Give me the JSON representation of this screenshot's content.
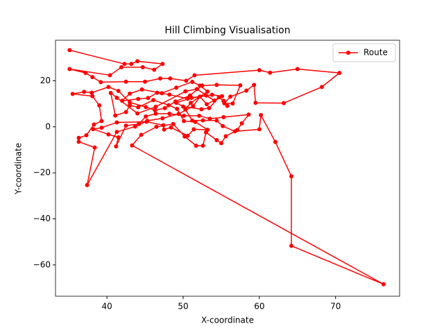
{
  "chart_data": {
    "type": "line",
    "title": "Hill Climbing Visualisation",
    "x_label": "X-coordinate",
    "y_label": "Y-coordinate",
    "xlim": [
      33.25,
      78.4
    ],
    "ylim": [
      -73.6,
      37.6
    ],
    "xticks": [
      40,
      50,
      60,
      70
    ],
    "yticks": [
      {
        "value": -60,
        "label": "−60"
      },
      {
        "value": -40,
        "label": "−40"
      },
      {
        "value": -20,
        "label": "−20"
      },
      0,
      20
    ],
    "legend": "upper right",
    "x": [
      35.1,
      42.3,
      43.2,
      44,
      47.3,
      46.2,
      44.7,
      41.9,
      40.4,
      35.1,
      37.2,
      38.1,
      39.2,
      42.5,
      45,
      47,
      48.3,
      50.4,
      51.5,
      60,
      61.4,
      65,
      70.5,
      68.2,
      63.2,
      59.5,
      59.3,
      58.3,
      56.2,
      55.4,
      56.5,
      57.5,
      54.4,
      52.5,
      50.9,
      49,
      47.6,
      46.3,
      45.1,
      43,
      41.5,
      40.2,
      38,
      37,
      35.5,
      38.1,
      39,
      39.3,
      38.3,
      37.3,
      36.3,
      36.3,
      38.4,
      37.4,
      41.3,
      43.7,
      45.3,
      47.3,
      49.4,
      51.3,
      52.2,
      53.1,
      55.1,
      53.8,
      50.6,
      48.2,
      46.6,
      45.4,
      44.1,
      42,
      43,
      44.6,
      47.2,
      49.1,
      51.2,
      52.2,
      53.2,
      51,
      50.3,
      51.2,
      52.6,
      54.4,
      55.2,
      56.8,
      60,
      60.2,
      62.1,
      64.2,
      64.2,
      76.3,
      43.3,
      44.5,
      46.5,
      48.7,
      50.2,
      51.7,
      52.6,
      53,
      54.4,
      55,
      55.6,
      57.1,
      57.7,
      58.6,
      55.3,
      53.5,
      52.1,
      50.1,
      48.2,
      46.4,
      45.1,
      44.2,
      42.5,
      41.2,
      41.5,
      40.2,
      38.2,
      39.3,
      41.3,
      45.2,
      47.4,
      47.5,
      48.4,
      50.6,
      51.4,
      53.2,
      51.6,
      50.1,
      49.2,
      48.1,
      46.1,
      44.1,
      43,
      42.5,
      41.1,
      40.5,
      41.3,
      44,
      46.4,
      50.3,
      51.8,
      54.1,
      53,
      51.1,
      49.1,
      50,
      52.4,
      53.4,
      54.7,
      55.3,
      55.8
    ],
    "series": [
      {
        "name": "Route",
        "color": "#ff0000",
        "values": [
          33.3,
          27.3,
          27.3,
          28.5,
          27.3,
          24.8,
          25.9,
          25.9,
          22.4,
          25.1,
          23.4,
          21.6,
          19.4,
          19.6,
          19.6,
          21,
          21,
          20,
          22.4,
          24.6,
          23.5,
          25.1,
          23.4,
          17.3,
          10.3,
          10.4,
          18.2,
          15.7,
          13.1,
          10.2,
          10.1,
          18,
          18.2,
          17.9,
          13.6,
          11,
          8.1,
          7.2,
          8.6,
          10.6,
          15.6,
          17.3,
          14.8,
          15.2,
          14.3,
          13.3,
          9.3,
          2.5,
          1,
          -3.7,
          -4.8,
          -6.5,
          -9,
          -25.3,
          -2.2,
          0.1,
          2.6,
          3.7,
          5.6,
          8.9,
          13.1,
          9.8,
          13.3,
          13.9,
          12.2,
          14,
          14.8,
          12.5,
          12.1,
          11.3,
          14.4,
          16.2,
          14.6,
          17,
          19.5,
          17.9,
          15.3,
          10.4,
          7.5,
          2.7,
          2.8,
          2.7,
          0.3,
          -2,
          -1.1,
          5.1,
          -6.6,
          -21.5,
          -51.7,
          -68.4,
          -8.1,
          -3.5,
          0,
          1.2,
          -4.2,
          -8.2,
          -8.2,
          -2.4,
          -5.8,
          -7.1,
          -4.1,
          -1.4,
          1.5,
          5.3,
          4.2,
          3.5,
          4.8,
          4.8,
          5.7,
          5.7,
          4.5,
          1.2,
          0.5,
          -8.5,
          -4.6,
          -3.3,
          -1,
          -0.4,
          1.9,
          2.2,
          0.7,
          -1.2,
          -0.3,
          -3.9,
          -1.1,
          -1.3,
          2.1,
          2.5,
          7.8,
          9.4,
          11.6,
          8.5,
          9.3,
          6.4,
          4.9,
          14.7,
          12.6,
          5.8,
          8.7,
          15.4,
          16.4,
          11.4,
          13.6,
          12.6,
          10.4,
          8.8,
          7.6,
          8.1,
          12.8,
          11.3,
          9.1
        ]
      }
    ]
  }
}
